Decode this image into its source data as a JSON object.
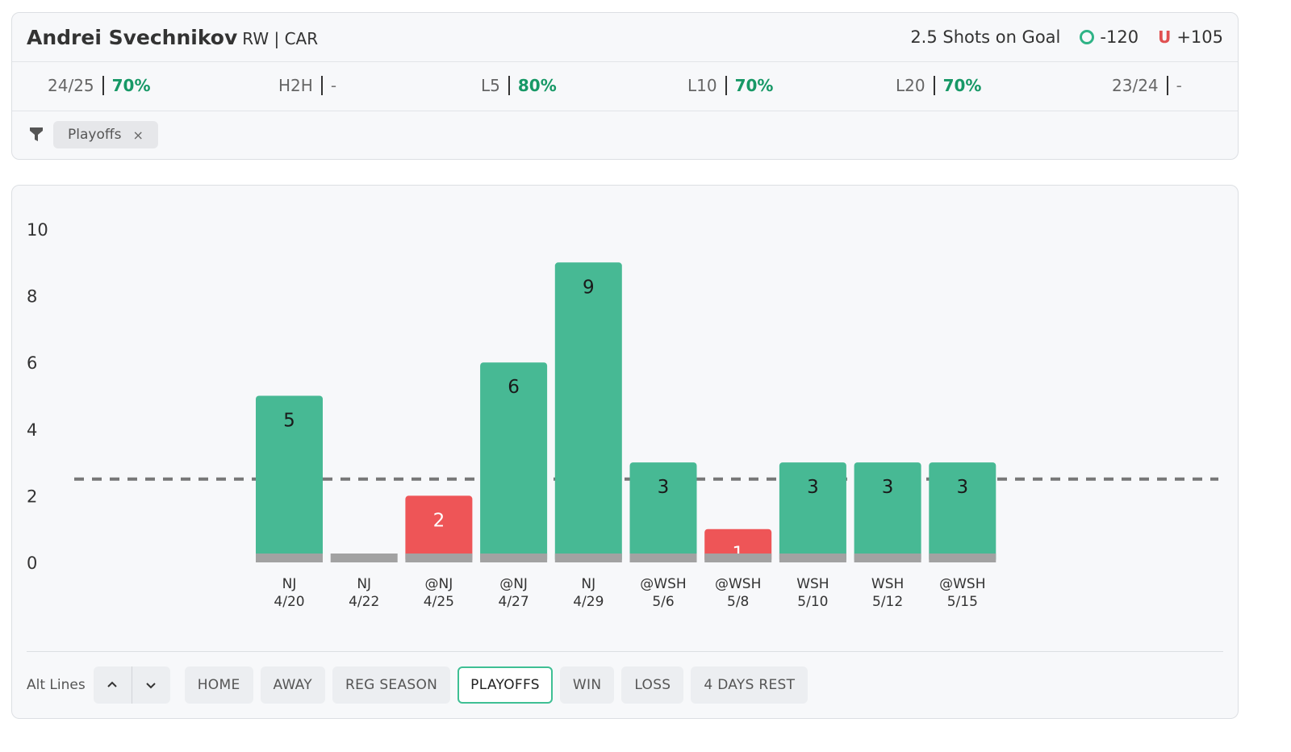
{
  "player": {
    "name": "Andrei Svechnikov",
    "meta": "RW | CAR"
  },
  "prop": {
    "line_label": "2.5 Shots on Goal",
    "over_odds": "-120",
    "under_symbol": "U",
    "under_odds": "+105"
  },
  "stats": [
    {
      "label": "24/25",
      "value": "70%"
    },
    {
      "label": "H2H",
      "value": "-"
    },
    {
      "label": "L5",
      "value": "80%"
    },
    {
      "label": "L10",
      "value": "70%"
    },
    {
      "label": "L20",
      "value": "70%"
    },
    {
      "label": "23/24",
      "value": "-"
    }
  ],
  "filter": {
    "chip_label": "Playoffs",
    "chip_close": "×"
  },
  "chart_data": {
    "type": "bar",
    "line": 2.5,
    "ylim": [
      0,
      10
    ],
    "y_ticks": [
      0,
      2,
      4,
      6,
      8,
      10
    ],
    "categories": [
      {
        "opp": "NJ",
        "date": "4/20"
      },
      {
        "opp": "NJ",
        "date": "4/22"
      },
      {
        "opp": "@NJ",
        "date": "4/25"
      },
      {
        "opp": "@NJ",
        "date": "4/27"
      },
      {
        "opp": "NJ",
        "date": "4/29"
      },
      {
        "opp": "@WSH",
        "date": "5/6"
      },
      {
        "opp": "@WSH",
        "date": "5/8"
      },
      {
        "opp": "WSH",
        "date": "5/10"
      },
      {
        "opp": "WSH",
        "date": "5/12"
      },
      {
        "opp": "@WSH",
        "date": "5/15"
      }
    ],
    "values": [
      5,
      0,
      2,
      6,
      9,
      3,
      1,
      3,
      3,
      3
    ],
    "colors": {
      "over": "#47b994",
      "under": "#ee5557",
      "base": "#a2a2a2",
      "line": "#777777"
    }
  },
  "controls": {
    "alt_lines_label": "Alt Lines",
    "up": "⌃",
    "down": "⌄",
    "filters": [
      "HOME",
      "AWAY",
      "REG SEASON",
      "PLAYOFFS",
      "WIN",
      "LOSS",
      "4 DAYS REST"
    ],
    "active": "PLAYOFFS"
  }
}
